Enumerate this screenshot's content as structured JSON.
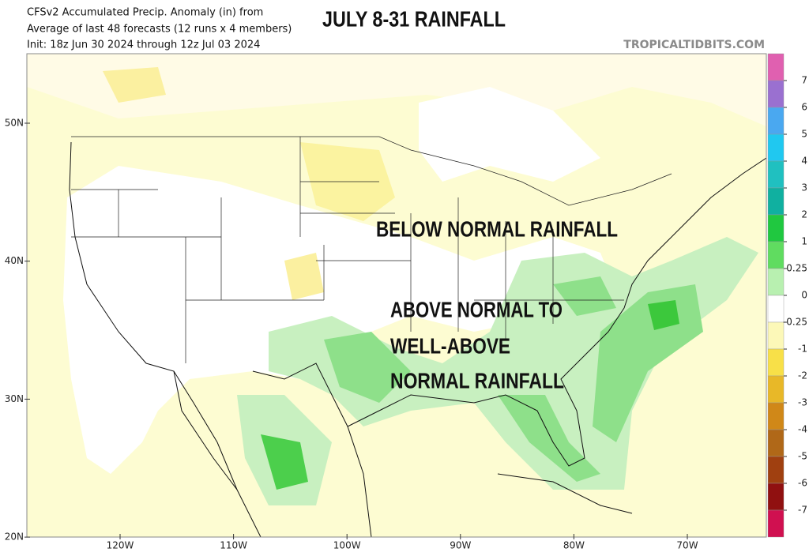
{
  "header": {
    "title": "CFSv2 Accumulated Precip. Anomaly (in) from",
    "subtitle": "Average of last 48 forecasts (12 runs x 4 members)",
    "init": "Init: 18z Jun 30 2024 through 12z Jul 03 2024",
    "watermark": "TROPICALTIDBITS.COM"
  },
  "overlay": {
    "headline": "JULY 8-31 RAINFALL",
    "below": "BELOW NORMAL RAINFALL",
    "above_lines": [
      "ABOVE NORMAL TO",
      "WELL-ABOVE",
      "NORMAL RAINFALL"
    ]
  },
  "map": {
    "lat_labels": [
      "50N",
      "40N",
      "30N",
      "20N"
    ],
    "lon_labels": [
      "120W",
      "110W",
      "100W",
      "90W",
      "80W",
      "70W"
    ]
  },
  "colorbar": {
    "labels": [
      "7",
      "6",
      "5",
      "4",
      "3",
      "2",
      "1",
      "0.25",
      "0",
      "-0.25",
      "-1",
      "-2",
      "-3",
      "-4",
      "-5",
      "-6",
      "-7"
    ]
  }
}
